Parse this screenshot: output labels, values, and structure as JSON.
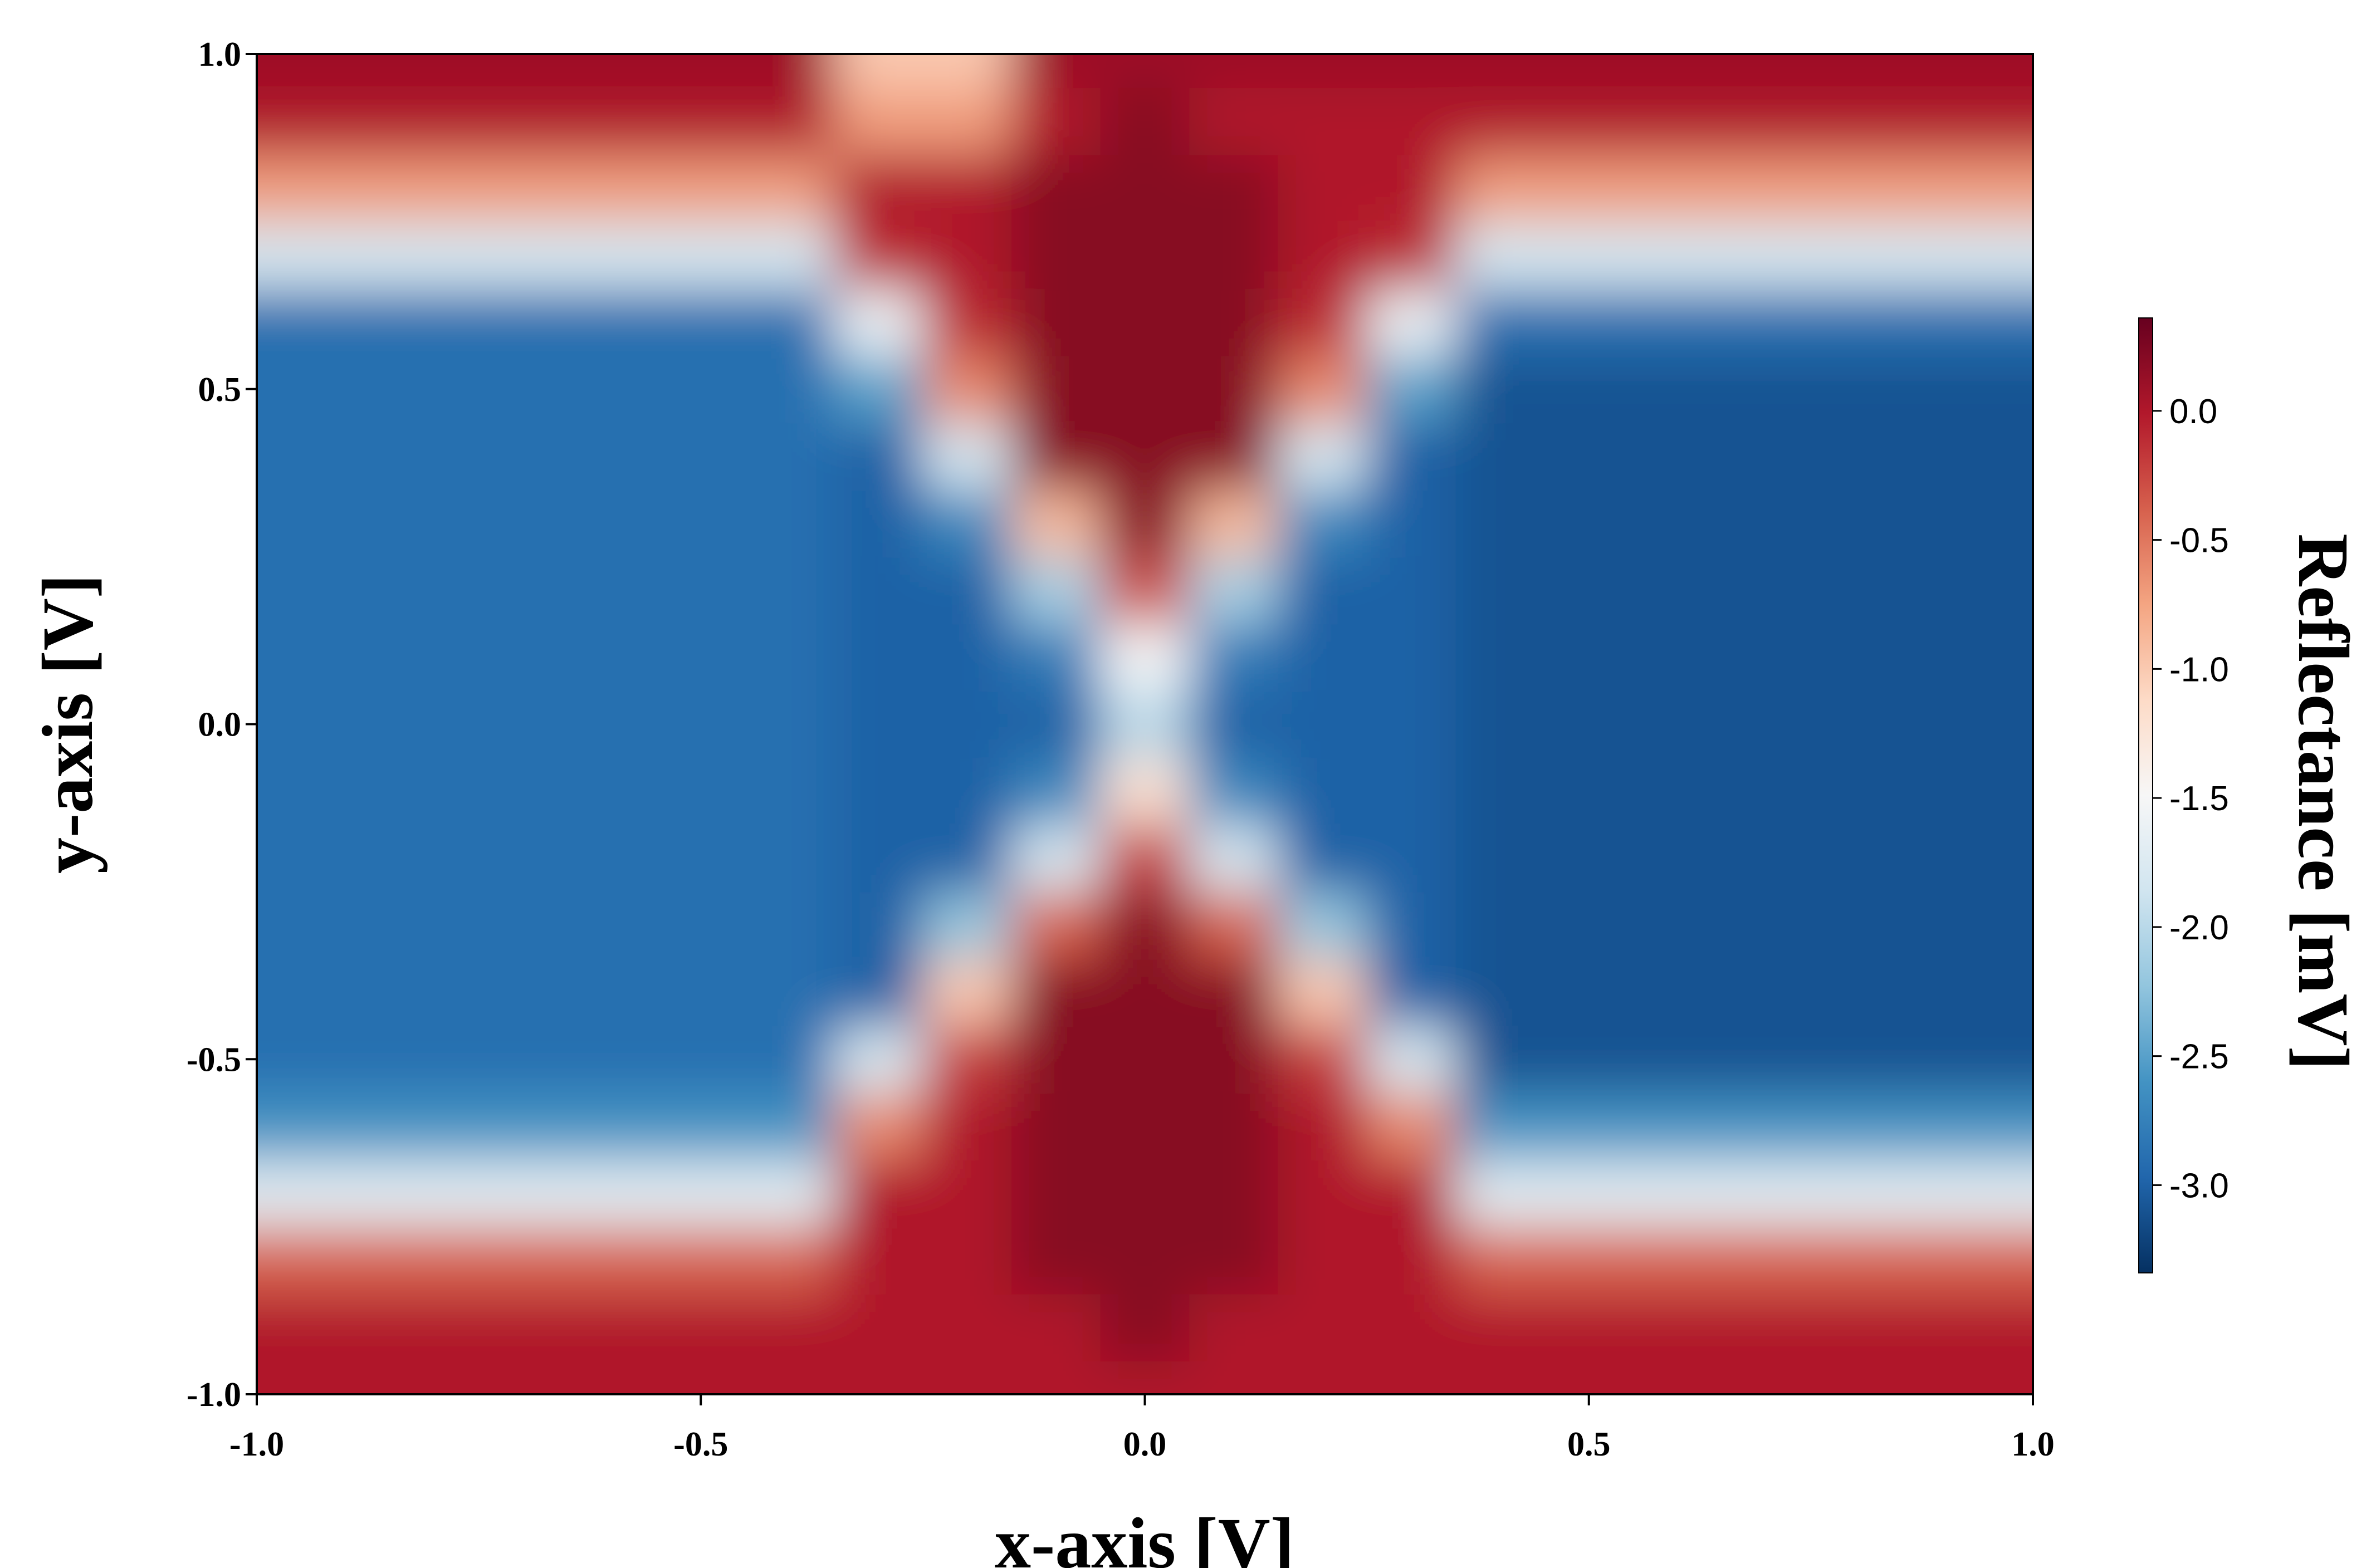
{
  "chart_data": {
    "type": "heatmap",
    "xlabel": "x-axis [V]",
    "ylabel": "y-axis [V]",
    "colorbar_label": "Reflectance [mV]",
    "xlim": [
      -1.0,
      1.0
    ],
    "ylim": [
      -1.0,
      1.0
    ],
    "xticks": [
      {
        "value": -1,
        "label": "-1.0"
      },
      {
        "value": -0.5,
        "label": "-0.5"
      },
      {
        "value": 0,
        "label": "0.0"
      },
      {
        "value": 0.5,
        "label": "0.5"
      },
      {
        "value": 1,
        "label": "1.0"
      }
    ],
    "yticks": [
      {
        "value": -1,
        "label": "-1.0"
      },
      {
        "value": -0.5,
        "label": "-0.5"
      },
      {
        "value": 0,
        "label": "0.0"
      },
      {
        "value": 0.5,
        "label": "0.5"
      },
      {
        "value": 1,
        "label": "1.0"
      }
    ],
    "zlim": [
      -3.34,
      0.36
    ],
    "zticks": [
      {
        "value": -3,
        "label": "-3.0"
      },
      {
        "value": -2.5,
        "label": "-2.5"
      },
      {
        "value": -2,
        "label": "-2.0"
      },
      {
        "value": -1.5,
        "label": "-1.5"
      },
      {
        "value": -1,
        "label": "-1.0"
      },
      {
        "value": -0.5,
        "label": "-0.5"
      },
      {
        "value": 0,
        "label": "0.0"
      }
    ],
    "colormap": [
      "#053061",
      "#2166ac",
      "#4393c3",
      "#92c5de",
      "#d1e5f0",
      "#f7f7f7",
      "#fddbc7",
      "#f4a582",
      "#d6604d",
      "#b2182b",
      "#67001f"
    ],
    "x": [
      -1,
      -0.9,
      -0.8,
      -0.7,
      -0.6,
      -0.5,
      -0.4,
      -0.3,
      -0.2,
      -0.1,
      0,
      0.1,
      0.2,
      0.3,
      0.4,
      0.5,
      0.6,
      0.7,
      0.8,
      0.9,
      1
    ],
    "y": [
      -1,
      -0.9,
      -0.8,
      -0.7,
      -0.6,
      -0.5,
      -0.4,
      -0.3,
      -0.2,
      -0.1,
      0,
      0.1,
      0.2,
      0.3,
      0.4,
      0.5,
      0.6,
      0.7,
      0.8,
      0.9,
      1
    ],
    "z": [
      [
        0,
        0,
        0,
        0,
        0,
        0,
        0,
        0,
        0,
        0,
        0,
        0,
        0,
        0,
        0,
        0,
        0,
        0,
        0,
        0,
        0
      ],
      [
        0,
        0,
        0,
        0,
        0,
        0,
        0,
        0,
        0,
        0,
        0.2,
        0,
        0,
        0,
        0,
        0,
        0,
        0,
        0,
        0,
        0
      ],
      [
        -0.4,
        -0.4,
        -0.4,
        -0.4,
        -0.4,
        -0.4,
        -0.4,
        0,
        0,
        0.2,
        0.2,
        0.2,
        0,
        0,
        -0.4,
        -0.4,
        -0.4,
        -0.4,
        -0.4,
        -0.4,
        -0.4
      ],
      [
        -1.7,
        -1.7,
        -1.7,
        -1.7,
        -1.7,
        -1.7,
        -1.7,
        0,
        0,
        0.2,
        0.2,
        0.2,
        0,
        0,
        -1.7,
        -1.7,
        -1.7,
        -1.7,
        -1.7,
        -1.7,
        -1.7
      ],
      [
        -2.6,
        -2.6,
        -2.6,
        -2.6,
        -2.6,
        -2.6,
        -2.6,
        -0.6,
        0,
        0.2,
        0.2,
        0.2,
        0,
        -0.6,
        -2.6,
        -2.6,
        -2.6,
        -2.6,
        -2.6,
        -2.6,
        -2.6
      ],
      [
        -2.9,
        -2.9,
        -2.9,
        -2.9,
        -2.9,
        -2.9,
        -2.9,
        -1.8,
        -0.2,
        0.2,
        0.2,
        0.2,
        -0.2,
        -1.8,
        -3.1,
        -3.1,
        -3.1,
        -3.1,
        -3.1,
        -3.1,
        -3.1
      ],
      [
        -2.9,
        -2.9,
        -2.9,
        -2.9,
        -2.9,
        -2.9,
        -2.9,
        -3,
        -1,
        0.2,
        0.2,
        0.2,
        -1,
        -3,
        -3.1,
        -3.1,
        -3.1,
        -3.1,
        -3.1,
        -3.1,
        -3.1
      ],
      [
        -2.9,
        -2.9,
        -2.9,
        -2.9,
        -2.9,
        -2.9,
        -2.9,
        -3,
        -2.2,
        -0.4,
        0.2,
        -0.4,
        -2.2,
        -3,
        -3.1,
        -3.1,
        -3.1,
        -3.1,
        -3.1,
        -3.1,
        -3.1
      ],
      [
        -2.9,
        -2.9,
        -2.9,
        -2.9,
        -2.9,
        -2.9,
        -2.9,
        -3,
        -3,
        -1.8,
        -0.2,
        -1.8,
        -3,
        -3,
        -3.1,
        -3.1,
        -3.1,
        -3.1,
        -3.1,
        -3.1,
        -3.1
      ],
      [
        -2.9,
        -2.9,
        -2.9,
        -2.9,
        -2.9,
        -2.9,
        -2.9,
        -3,
        -3,
        -2.7,
        -1.2,
        -2.7,
        -3,
        -3,
        -3.1,
        -3.1,
        -3.1,
        -3.1,
        -3.1,
        -3.1,
        -3.1
      ],
      [
        -2.9,
        -2.9,
        -2.9,
        -2.9,
        -2.9,
        -2.9,
        -2.9,
        -3,
        -3,
        -3,
        -2,
        -3,
        -3,
        -3,
        -3.1,
        -3.1,
        -3.1,
        -3.1,
        -3.1,
        -3.1,
        -3.1
      ],
      [
        -2.9,
        -2.9,
        -2.9,
        -2.9,
        -2.9,
        -2.9,
        -2.9,
        -3,
        -3,
        -2.8,
        -1.5,
        -2.8,
        -3,
        -3,
        -3.1,
        -3.1,
        -3.1,
        -3.1,
        -3.1,
        -3.1,
        -3.1
      ],
      [
        -2.9,
        -2.9,
        -2.9,
        -2.9,
        -2.9,
        -2.9,
        -2.9,
        -3,
        -3,
        -2.1,
        -0.3,
        -2.1,
        -3,
        -3,
        -3.1,
        -3.1,
        -3.1,
        -3.1,
        -3.1,
        -3.1,
        -3.1
      ],
      [
        -2.9,
        -2.9,
        -2.9,
        -2.9,
        -2.9,
        -2.9,
        -2.9,
        -3,
        -2.7,
        -0.9,
        0.2,
        -0.9,
        -2.7,
        -3,
        -3.1,
        -3.1,
        -3.1,
        -3.1,
        -3.1,
        -3.1,
        -3.1
      ],
      [
        -2.9,
        -2.9,
        -2.9,
        -2.9,
        -2.9,
        -2.9,
        -2.9,
        -3,
        -1.8,
        0.2,
        0.2,
        0.2,
        -1.8,
        -3,
        -3.1,
        -3.1,
        -3.1,
        -3.1,
        -3.1,
        -3.1,
        -3.1
      ],
      [
        -2.9,
        -2.9,
        -2.9,
        -2.9,
        -2.9,
        -2.9,
        -2.9,
        -2.5,
        -0.6,
        0.2,
        0.2,
        0.2,
        -0.6,
        -2.5,
        -3.1,
        -3.1,
        -3.1,
        -3.1,
        -3.1,
        -3.1,
        -3.1
      ],
      [
        -2.9,
        -2.9,
        -2.9,
        -2.9,
        -2.9,
        -2.9,
        -2.9,
        -1.6,
        -0.1,
        0.2,
        0.2,
        0.2,
        -0.1,
        -1.6,
        -2.9,
        -2.9,
        -2.9,
        -2.9,
        -2.9,
        -2.9,
        -2.9
      ],
      [
        -1.8,
        -1.8,
        -1.8,
        -1.8,
        -1.8,
        -1.8,
        -1.8,
        -0.1,
        0,
        0.2,
        0.2,
        0.2,
        0,
        -0.1,
        -1.8,
        -1.8,
        -1.8,
        -1.8,
        -1.8,
        -1.8,
        -1.8
      ],
      [
        -0.7,
        -0.7,
        -0.7,
        -0.7,
        -0.7,
        -0.7,
        -0.7,
        0,
        0,
        0.2,
        0.2,
        0.2,
        0,
        0,
        -0.7,
        -0.7,
        -0.7,
        -0.7,
        -0.7,
        -0.7,
        -0.7
      ],
      [
        0,
        0,
        0,
        0,
        0,
        0,
        0,
        -0.7,
        -0.7,
        0,
        0.2,
        0,
        0,
        0,
        0,
        0,
        0,
        0,
        0,
        0,
        0
      ],
      [
        0.1,
        0.1,
        0.1,
        0.1,
        0.1,
        0.1,
        0.1,
        -1,
        -1,
        0.1,
        0.1,
        0.1,
        0.1,
        0.1,
        0.1,
        0.1,
        0.1,
        0.1,
        0.1,
        0.1,
        0.1
      ]
    ]
  }
}
